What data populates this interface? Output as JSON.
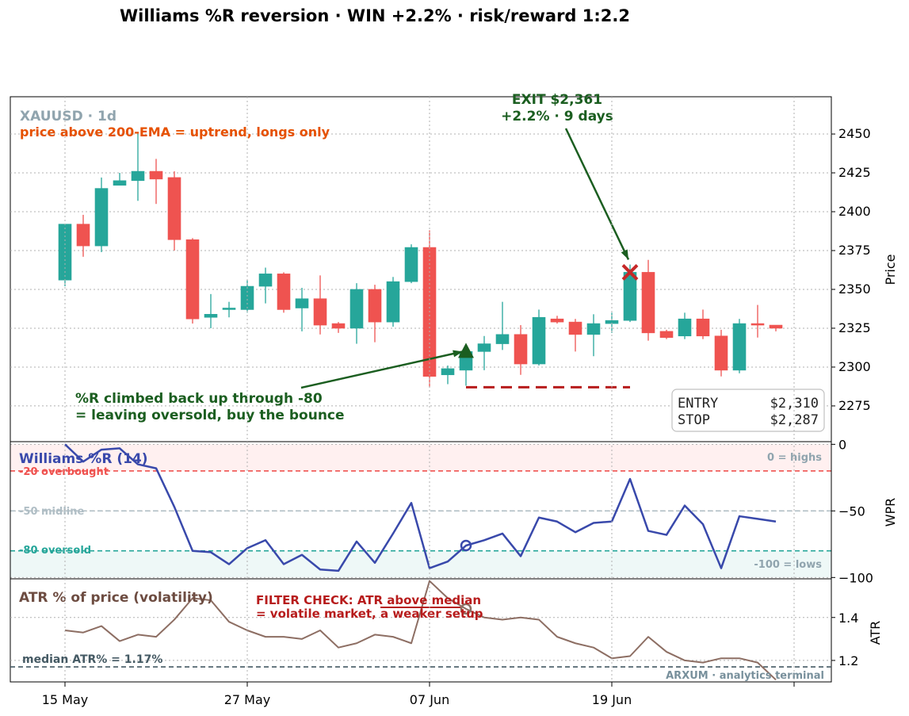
{
  "title": "Williams %R reversion  ·  WIN +2.2%  ·  risk/reward 1:2.2",
  "watermark": "ARXUM · analytics terminal",
  "colors": {
    "up": "#26a69a",
    "down": "#ef5350",
    "wpr": "#3949ab",
    "atr": "#8d6e63",
    "green": "#1b5e20",
    "red": "#b71c1c",
    "orange": "#e65100",
    "grey": "#90a4ae"
  },
  "chart_data": [
    {
      "type": "candlestick",
      "instrument": "XAUUSD · 1d",
      "ylabel": "Price",
      "ylim": [
        2252,
        2474
      ],
      "yticks": [
        2275,
        2300,
        2325,
        2350,
        2375,
        2400,
        2425,
        2450
      ],
      "xticks": [
        {
          "label": "15 May",
          "index": 0
        },
        {
          "label": "27 May",
          "index": 10
        },
        {
          "label": "07 Jun",
          "index": 20
        },
        {
          "label": "19 Jun",
          "index": 30
        }
      ],
      "grid": true,
      "candles": [
        {
          "o": 2356,
          "h": 2392,
          "l": 2352,
          "c": 2392
        },
        {
          "o": 2392,
          "h": 2398,
          "l": 2371,
          "c": 2378
        },
        {
          "o": 2378,
          "h": 2422,
          "l": 2374,
          "c": 2415
        },
        {
          "o": 2417,
          "h": 2425,
          "l": 2417,
          "c": 2420
        },
        {
          "o": 2420,
          "h": 2450,
          "l": 2407,
          "c": 2426
        },
        {
          "o": 2426,
          "h": 2434,
          "l": 2405,
          "c": 2421
        },
        {
          "o": 2422,
          "h": 2426,
          "l": 2375,
          "c": 2382
        },
        {
          "o": 2382,
          "h": 2383,
          "l": 2328,
          "c": 2331
        },
        {
          "o": 2332,
          "h": 2347,
          "l": 2325,
          "c": 2334
        },
        {
          "o": 2337,
          "h": 2342,
          "l": 2332,
          "c": 2338
        },
        {
          "o": 2337,
          "h": 2356,
          "l": 2335,
          "c": 2352
        },
        {
          "o": 2352,
          "h": 2364,
          "l": 2341,
          "c": 2360
        },
        {
          "o": 2360,
          "h": 2361,
          "l": 2335,
          "c": 2337
        },
        {
          "o": 2338,
          "h": 2351,
          "l": 2323,
          "c": 2344
        },
        {
          "o": 2344,
          "h": 2359,
          "l": 2321,
          "c": 2327
        },
        {
          "o": 2328,
          "h": 2329,
          "l": 2322,
          "c": 2325
        },
        {
          "o": 2325,
          "h": 2354,
          "l": 2315,
          "c": 2350
        },
        {
          "o": 2350,
          "h": 2353,
          "l": 2316,
          "c": 2329
        },
        {
          "o": 2329,
          "h": 2358,
          "l": 2326,
          "c": 2355
        },
        {
          "o": 2355,
          "h": 2379,
          "l": 2354,
          "c": 2377
        },
        {
          "o": 2377,
          "h": 2388,
          "l": 2287,
          "c": 2294
        },
        {
          "o": 2295,
          "h": 2301,
          "l": 2289,
          "c": 2299
        },
        {
          "o": 2298,
          "h": 2313,
          "l": 2288,
          "c": 2310
        },
        {
          "o": 2310,
          "h": 2320,
          "l": 2298,
          "c": 2315
        },
        {
          "o": 2315,
          "h": 2342,
          "l": 2311,
          "c": 2321
        },
        {
          "o": 2321,
          "h": 2327,
          "l": 2295,
          "c": 2302
        },
        {
          "o": 2302,
          "h": 2337,
          "l": 2301,
          "c": 2332
        },
        {
          "o": 2331,
          "h": 2333,
          "l": 2328,
          "c": 2329
        },
        {
          "o": 2329,
          "h": 2331,
          "l": 2310,
          "c": 2321
        },
        {
          "o": 2321,
          "h": 2334,
          "l": 2307,
          "c": 2328
        },
        {
          "o": 2328,
          "h": 2335,
          "l": 2322,
          "c": 2330
        },
        {
          "o": 2330,
          "h": 2366,
          "l": 2329,
          "c": 2361
        },
        {
          "o": 2361,
          "h": 2369,
          "l": 2317,
          "c": 2322
        },
        {
          "o": 2323,
          "h": 2324,
          "l": 2318,
          "c": 2319
        },
        {
          "o": 2320,
          "h": 2335,
          "l": 2318,
          "c": 2331
        },
        {
          "o": 2331,
          "h": 2337,
          "l": 2318,
          "c": 2320
        },
        {
          "o": 2320,
          "h": 2324,
          "l": 2294,
          "c": 2298
        },
        {
          "o": 2298,
          "h": 2331,
          "l": 2296,
          "c": 2328
        },
        {
          "o": 2328,
          "h": 2340,
          "l": 2319,
          "c": 2327
        },
        {
          "o": 2327,
          "h": 2327,
          "l": 2323,
          "c": 2325
        }
      ],
      "entry": {
        "index": 22,
        "price": 2310
      },
      "stop": {
        "price": 2287,
        "from_index": 22,
        "to_index": 31
      },
      "exit": {
        "index": 31,
        "price": 2361
      },
      "annotations": {
        "subtitle": "price above 200-EMA = uptrend, longs only",
        "entry_note_line1": "%R climbed back up through -80",
        "entry_note_line2": "= leaving oversold, buy the bounce",
        "exit_line1": "EXIT $2,361",
        "exit_line2": "+2.2%  ·  9 days",
        "box_entry_label": "ENTRY",
        "box_entry_value": "$2,310",
        "box_stop_label": "STOP",
        "box_stop_value": "$2,287"
      }
    },
    {
      "type": "line",
      "name": "Williams %R (14)",
      "ylabel": "WPR",
      "ylim": [
        -101,
        2
      ],
      "yticks": [
        0,
        -50,
        -100
      ],
      "levels": [
        {
          "value": -20,
          "label": "-20  overbought"
        },
        {
          "value": -50,
          "label": "-50  midline"
        },
        {
          "value": -80,
          "label": "-80  oversold"
        }
      ],
      "corner_labels": {
        "top": "0 = highs",
        "bottom": "-100 = lows"
      },
      "values": [
        0,
        -13,
        -4,
        -3,
        -15,
        -18,
        -47,
        -80,
        -81,
        -90,
        -78,
        -72,
        -90,
        -83,
        -94,
        -95,
        -73,
        -89,
        -67,
        -44,
        -93,
        -88,
        -76,
        -72,
        -67,
        -84,
        -55,
        -58,
        -66,
        -59,
        -58,
        -26,
        -65,
        -68,
        -46,
        -60,
        -93,
        -54,
        -56,
        -58
      ],
      "marker_index": 22
    },
    {
      "type": "line",
      "name": "ATR % of price (volatility)",
      "ylabel": "ATR",
      "ylim": [
        1.1,
        1.58
      ],
      "yticks": [
        1.2,
        1.4
      ],
      "median": 1.17,
      "median_label": "median ATR% = 1.17%",
      "filter_line1": "FILTER CHECK: ATR above median",
      "filter_line2": "= volatile market, a weaker setup",
      "values": [
        1.34,
        1.33,
        1.36,
        1.29,
        1.32,
        1.31,
        1.39,
        1.49,
        1.48,
        1.38,
        1.34,
        1.31,
        1.31,
        1.3,
        1.34,
        1.26,
        1.28,
        1.32,
        1.31,
        1.28,
        1.57,
        1.49,
        1.44,
        1.4,
        1.39,
        1.4,
        1.39,
        1.31,
        1.28,
        1.26,
        1.21,
        1.22,
        1.31,
        1.24,
        1.2,
        1.19,
        1.21,
        1.21,
        1.19,
        1.11
      ],
      "marker_index": 22
    }
  ]
}
